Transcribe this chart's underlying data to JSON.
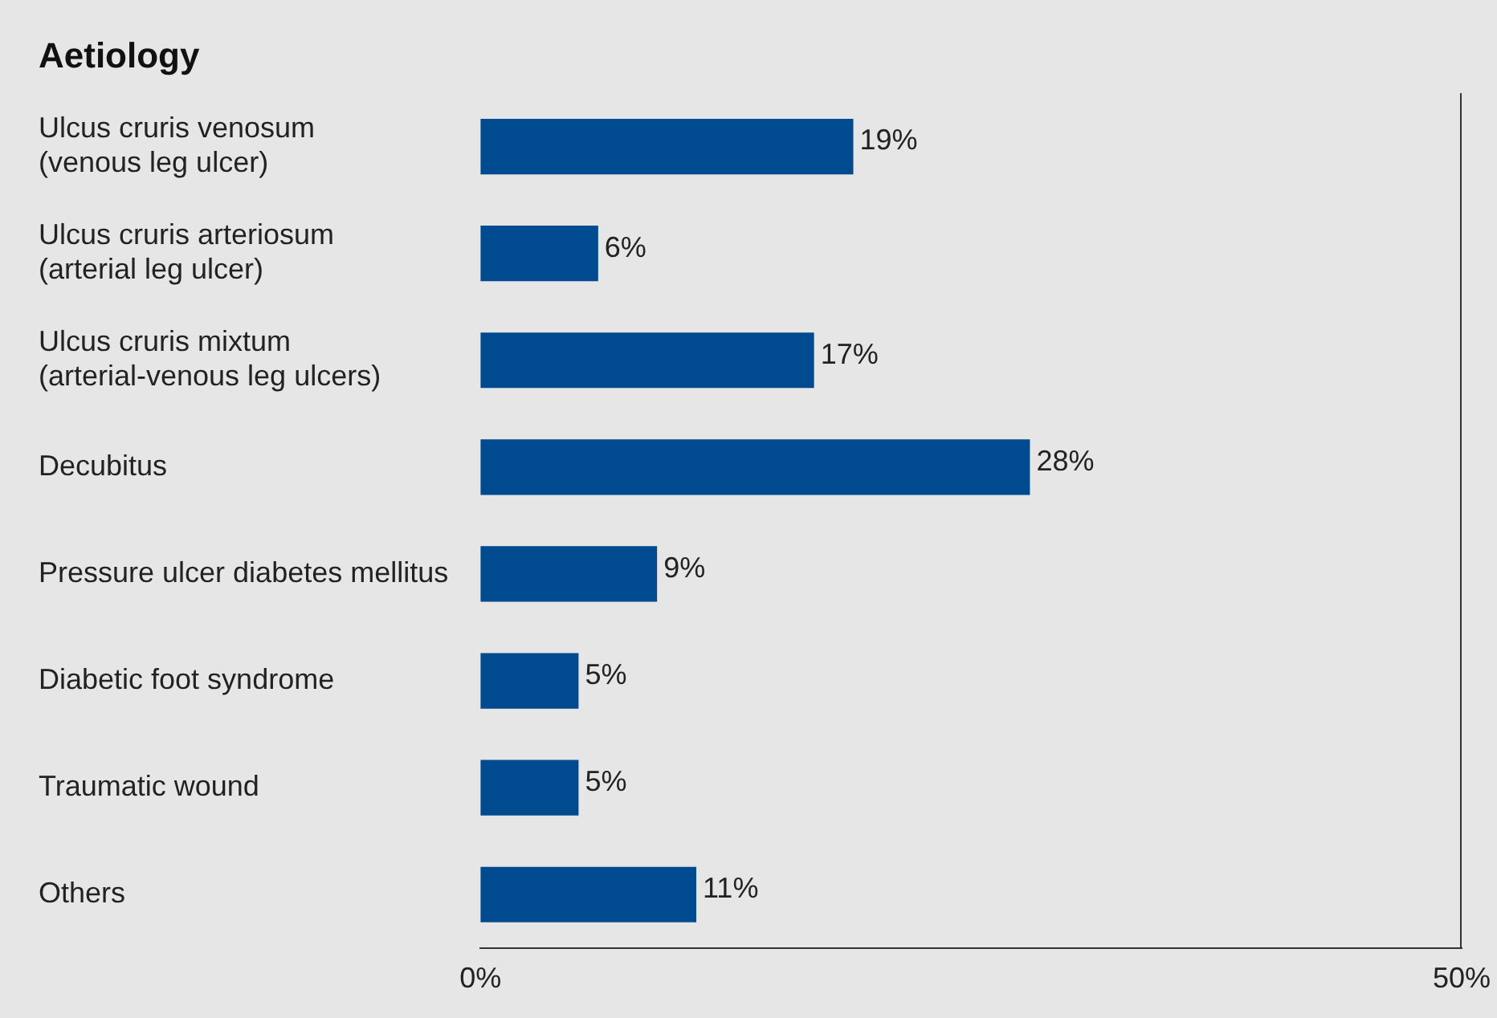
{
  "chart_data": {
    "type": "bar",
    "orientation": "horizontal",
    "title": "Aetiology",
    "categories": [
      "Ulcus cruris venosum\n(venous leg ulcer)",
      "Ulcus cruris arteriosum\n(arterial leg ulcer)",
      "Ulcus cruris mixtum\n(arterial-venous leg ulcers)",
      "Decubitus",
      "Pressure ulcer diabetes mellitus",
      "Diabetic foot syndrome",
      "Traumatic wound",
      "Others"
    ],
    "values": [
      19,
      6,
      17,
      28,
      9,
      5,
      5,
      11
    ],
    "value_labels": [
      "19%",
      "6%",
      "17%",
      "28%",
      "9%",
      "5%",
      "5%",
      "11%"
    ],
    "color": "#004a8f",
    "xlim": [
      0,
      50
    ],
    "xticks": [
      {
        "value": 0,
        "label": "0%"
      },
      {
        "value": 50,
        "label": "50%"
      }
    ],
    "legend": false
  }
}
